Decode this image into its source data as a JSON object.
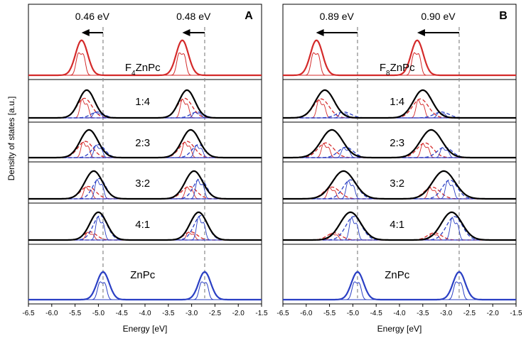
{
  "figure": {
    "ylabel": "Density of states [a.u.]",
    "xlabel": "Energy [eV]"
  },
  "chart_data": [
    {
      "panel": "A",
      "type": "line",
      "xlabel": "Energy [eV]",
      "ylabel": "Density of states [a.u.]",
      "xlim": [
        -6.5,
        -1.5
      ],
      "xticks": [
        -6.5,
        -6.0,
        -5.5,
        -5.0,
        -4.5,
        -4.0,
        -3.5,
        -3.0,
        -2.5,
        -2.0,
        -1.5
      ],
      "xtick_labels": [
        "-6.5",
        "-6.0",
        "-5.5",
        "-5.0",
        "-4.5",
        "-4.0",
        "-3.5",
        "-3.0",
        "-2.5",
        "-2.0",
        "-1.5"
      ],
      "reference_lines_eV": [
        -4.9,
        -2.72
      ],
      "shifts": [
        {
          "label": "0.46 eV",
          "from": -4.9,
          "to": -5.36
        },
        {
          "label": "0.48 eV",
          "from": -2.72,
          "to": -3.2
        }
      ],
      "rows": [
        {
          "label": "F4ZnPc",
          "label_main": "F",
          "label_sub": "4",
          "label_rest": "ZnPc",
          "total_color": "#d42a2a",
          "peaks": [
            {
              "center": -5.36,
              "sigma": 0.13,
              "height": 0.85
            },
            {
              "center": -3.2,
              "sigma": 0.13,
              "height": 0.85
            }
          ],
          "components": []
        },
        {
          "label": "1:4",
          "total_color": "#000000",
          "peaks": [
            {
              "center": -5.25,
              "sigma": 0.17,
              "height": 0.85
            },
            {
              "center": -3.1,
              "sigma": 0.17,
              "height": 0.85
            }
          ],
          "components": [
            {
              "type": "ratio",
              "color": "#d42a2a",
              "center": -5.3,
              "sigma": 0.16,
              "height": 0.6
            },
            {
              "type": "ratio",
              "color": "#d42a2a",
              "center": -3.15,
              "sigma": 0.16,
              "height": 0.6
            },
            {
              "type": "ratio",
              "color": "#2a3fc4",
              "center": -5.02,
              "sigma": 0.14,
              "height": 0.18
            },
            {
              "type": "ratio",
              "color": "#2a3fc4",
              "center": -2.88,
              "sigma": 0.14,
              "height": 0.18
            }
          ]
        },
        {
          "label": "2:3",
          "total_color": "#000000",
          "peaks": [
            {
              "center": -5.2,
              "sigma": 0.19,
              "height": 0.85
            },
            {
              "center": -3.02,
              "sigma": 0.19,
              "height": 0.85
            }
          ],
          "components": [
            {
              "type": "ratio",
              "color": "#d42a2a",
              "center": -5.28,
              "sigma": 0.16,
              "height": 0.5
            },
            {
              "type": "ratio",
              "color": "#d42a2a",
              "center": -3.1,
              "sigma": 0.16,
              "height": 0.5
            },
            {
              "type": "ratio",
              "color": "#2a3fc4",
              "center": -5.0,
              "sigma": 0.14,
              "height": 0.4
            },
            {
              "type": "ratio",
              "color": "#2a3fc4",
              "center": -2.85,
              "sigma": 0.14,
              "height": 0.4
            }
          ]
        },
        {
          "label": "3:2",
          "total_color": "#000000",
          "peaks": [
            {
              "center": -5.1,
              "sigma": 0.19,
              "height": 0.85
            },
            {
              "center": -2.95,
              "sigma": 0.19,
              "height": 0.85
            }
          ],
          "components": [
            {
              "type": "ratio",
              "color": "#d42a2a",
              "center": -5.22,
              "sigma": 0.16,
              "height": 0.38
            },
            {
              "type": "ratio",
              "color": "#d42a2a",
              "center": -3.05,
              "sigma": 0.16,
              "height": 0.38
            },
            {
              "type": "ratio",
              "color": "#2a3fc4",
              "center": -4.98,
              "sigma": 0.14,
              "height": 0.62
            },
            {
              "type": "ratio",
              "color": "#2a3fc4",
              "center": -2.82,
              "sigma": 0.14,
              "height": 0.62
            }
          ]
        },
        {
          "label": "4:1",
          "total_color": "#000000",
          "peaks": [
            {
              "center": -5.0,
              "sigma": 0.18,
              "height": 0.85
            },
            {
              "center": -2.85,
              "sigma": 0.18,
              "height": 0.85
            }
          ],
          "components": [
            {
              "type": "ratio",
              "color": "#d42a2a",
              "center": -5.18,
              "sigma": 0.14,
              "height": 0.25
            },
            {
              "type": "ratio",
              "color": "#d42a2a",
              "center": -3.02,
              "sigma": 0.14,
              "height": 0.25
            },
            {
              "type": "ratio",
              "color": "#2a3fc4",
              "center": -4.96,
              "sigma": 0.15,
              "height": 0.75
            },
            {
              "type": "ratio",
              "color": "#2a3fc4",
              "center": -2.8,
              "sigma": 0.15,
              "height": 0.75
            }
          ]
        },
        {
          "label": "ZnPc",
          "total_color": "#2a3fc4",
          "peaks": [
            {
              "center": -4.9,
              "sigma": 0.13,
              "height": 0.85
            },
            {
              "center": -2.72,
              "sigma": 0.13,
              "height": 0.85
            }
          ],
          "components": []
        }
      ]
    },
    {
      "panel": "B",
      "type": "line",
      "xlabel": "Energy [eV]",
      "ylabel": "Density of states [a.u.]",
      "xlim": [
        -6.5,
        -1.5
      ],
      "xticks": [
        -6.5,
        -6.0,
        -5.5,
        -5.0,
        -4.5,
        -4.0,
        -3.5,
        -3.0,
        -2.5,
        -2.0,
        -1.5
      ],
      "xtick_labels": [
        "-6.5",
        "-6.0",
        "-5.5",
        "-5.0",
        "-4.5",
        "-4.0",
        "-3.5",
        "-3.0",
        "-2.5",
        "-2.0",
        "-1.5"
      ],
      "reference_lines_eV": [
        -4.9,
        -2.72
      ],
      "shifts": [
        {
          "label": "0.89 eV",
          "from": -4.9,
          "to": -5.79
        },
        {
          "label": "0.90 eV",
          "from": -2.72,
          "to": -3.62
        }
      ],
      "rows": [
        {
          "label": "F8ZnPc",
          "label_main": "F",
          "label_sub": "8",
          "label_rest": "ZnPc",
          "total_color": "#d42a2a",
          "peaks": [
            {
              "center": -5.78,
              "sigma": 0.13,
              "height": 0.85
            },
            {
              "center": -3.62,
              "sigma": 0.13,
              "height": 0.85
            }
          ],
          "components": []
        },
        {
          "label": "1:4",
          "total_color": "#000000",
          "peaks": [
            {
              "center": -5.6,
              "sigma": 0.2,
              "height": 0.85
            },
            {
              "center": -3.5,
              "sigma": 0.2,
              "height": 0.85
            }
          ],
          "components": [
            {
              "type": "ratio",
              "color": "#d42a2a",
              "center": -5.68,
              "sigma": 0.17,
              "height": 0.58
            },
            {
              "type": "ratio",
              "color": "#d42a2a",
              "center": -3.55,
              "sigma": 0.17,
              "height": 0.58
            },
            {
              "type": "ratio",
              "color": "#2a3fc4",
              "center": -5.2,
              "sigma": 0.16,
              "height": 0.18
            },
            {
              "type": "ratio",
              "color": "#2a3fc4",
              "center": -3.1,
              "sigma": 0.16,
              "height": 0.18
            }
          ]
        },
        {
          "label": "2:3",
          "total_color": "#000000",
          "peaks": [
            {
              "center": -5.45,
              "sigma": 0.23,
              "height": 0.85
            },
            {
              "center": -3.32,
              "sigma": 0.23,
              "height": 0.85
            }
          ],
          "components": [
            {
              "type": "ratio",
              "color": "#d42a2a",
              "center": -5.58,
              "sigma": 0.17,
              "height": 0.45
            },
            {
              "type": "ratio",
              "color": "#d42a2a",
              "center": -3.45,
              "sigma": 0.17,
              "height": 0.45
            },
            {
              "type": "ratio",
              "color": "#2a3fc4",
              "center": -5.15,
              "sigma": 0.16,
              "height": 0.32
            },
            {
              "type": "ratio",
              "color": "#2a3fc4",
              "center": -3.03,
              "sigma": 0.16,
              "height": 0.32
            }
          ]
        },
        {
          "label": "3:2",
          "total_color": "#000000",
          "peaks": [
            {
              "center": -5.2,
              "sigma": 0.24,
              "height": 0.85
            },
            {
              "center": -3.05,
              "sigma": 0.24,
              "height": 0.85
            }
          ],
          "components": [
            {
              "type": "ratio",
              "color": "#d42a2a",
              "center": -5.45,
              "sigma": 0.17,
              "height": 0.36
            },
            {
              "type": "ratio",
              "color": "#d42a2a",
              "center": -3.3,
              "sigma": 0.17,
              "height": 0.36
            },
            {
              "type": "ratio",
              "color": "#2a3fc4",
              "center": -5.05,
              "sigma": 0.16,
              "height": 0.58
            },
            {
              "type": "ratio",
              "color": "#2a3fc4",
              "center": -2.92,
              "sigma": 0.16,
              "height": 0.58
            }
          ]
        },
        {
          "label": "4:1",
          "total_color": "#000000",
          "peaks": [
            {
              "center": -5.05,
              "sigma": 0.22,
              "height": 0.85
            },
            {
              "center": -2.88,
              "sigma": 0.22,
              "height": 0.85
            }
          ],
          "components": [
            {
              "type": "ratio",
              "color": "#d42a2a",
              "center": -5.4,
              "sigma": 0.15,
              "height": 0.22
            },
            {
              "type": "ratio",
              "color": "#d42a2a",
              "center": -3.25,
              "sigma": 0.15,
              "height": 0.22
            },
            {
              "type": "ratio",
              "color": "#2a3fc4",
              "center": -4.98,
              "sigma": 0.17,
              "height": 0.72
            },
            {
              "type": "ratio",
              "color": "#2a3fc4",
              "center": -2.82,
              "sigma": 0.17,
              "height": 0.72
            }
          ]
        },
        {
          "label": "ZnPc",
          "total_color": "#2a3fc4",
          "peaks": [
            {
              "center": -4.9,
              "sigma": 0.13,
              "height": 0.85
            },
            {
              "center": -2.72,
              "sigma": 0.13,
              "height": 0.85
            }
          ],
          "components": []
        }
      ]
    }
  ]
}
